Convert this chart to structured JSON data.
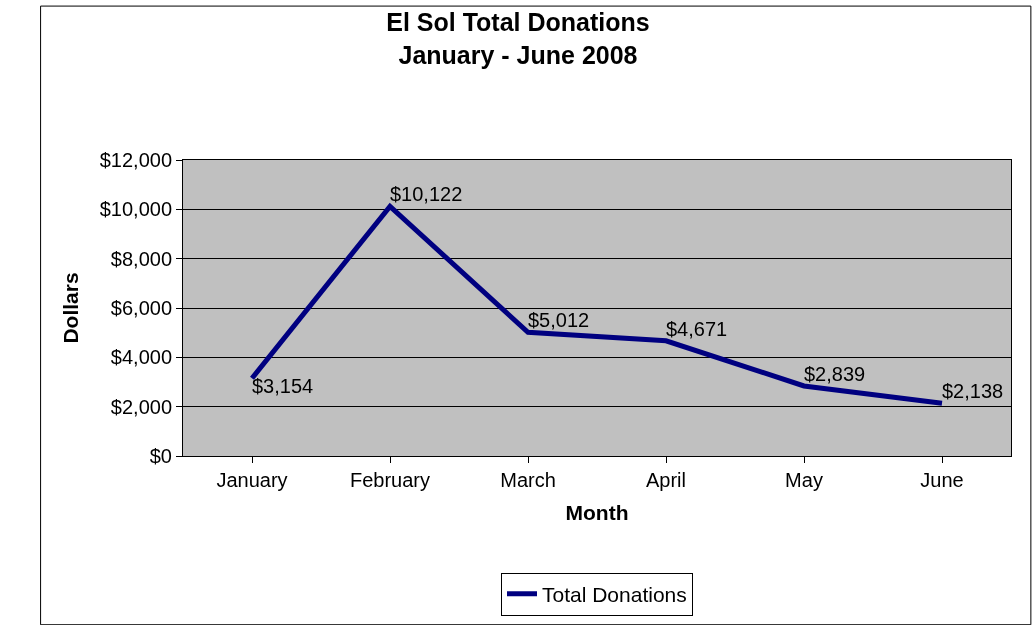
{
  "chart_data": {
    "type": "line",
    "title": "El Sol Total Donations\nJanuary - June 2008",
    "xlabel": "Month",
    "ylabel": "Dollars",
    "categories": [
      "January",
      "February",
      "March",
      "April",
      "May",
      "June"
    ],
    "series": [
      {
        "name": "Total Donations",
        "color": "#000080",
        "values": [
          3154,
          10122,
          5012,
          4671,
          2839,
          2138
        ],
        "value_labels": [
          "$3,154",
          "$10,122",
          "$5,012",
          "$4,671",
          "$2,839",
          "$2,138"
        ]
      }
    ],
    "ylim": [
      0,
      12000
    ],
    "yticks": [
      {
        "value": 0,
        "label": "$0"
      },
      {
        "value": 2000,
        "label": "$2,000"
      },
      {
        "value": 4000,
        "label": "$4,000"
      },
      {
        "value": 6000,
        "label": "$6,000"
      },
      {
        "value": 8000,
        "label": "$8,000"
      },
      {
        "value": 10000,
        "label": "$10,000"
      },
      {
        "value": 12000,
        "label": "$12,000"
      }
    ],
    "grid": "y",
    "legend": "bottom",
    "marker": "none",
    "line_style": "solid"
  }
}
